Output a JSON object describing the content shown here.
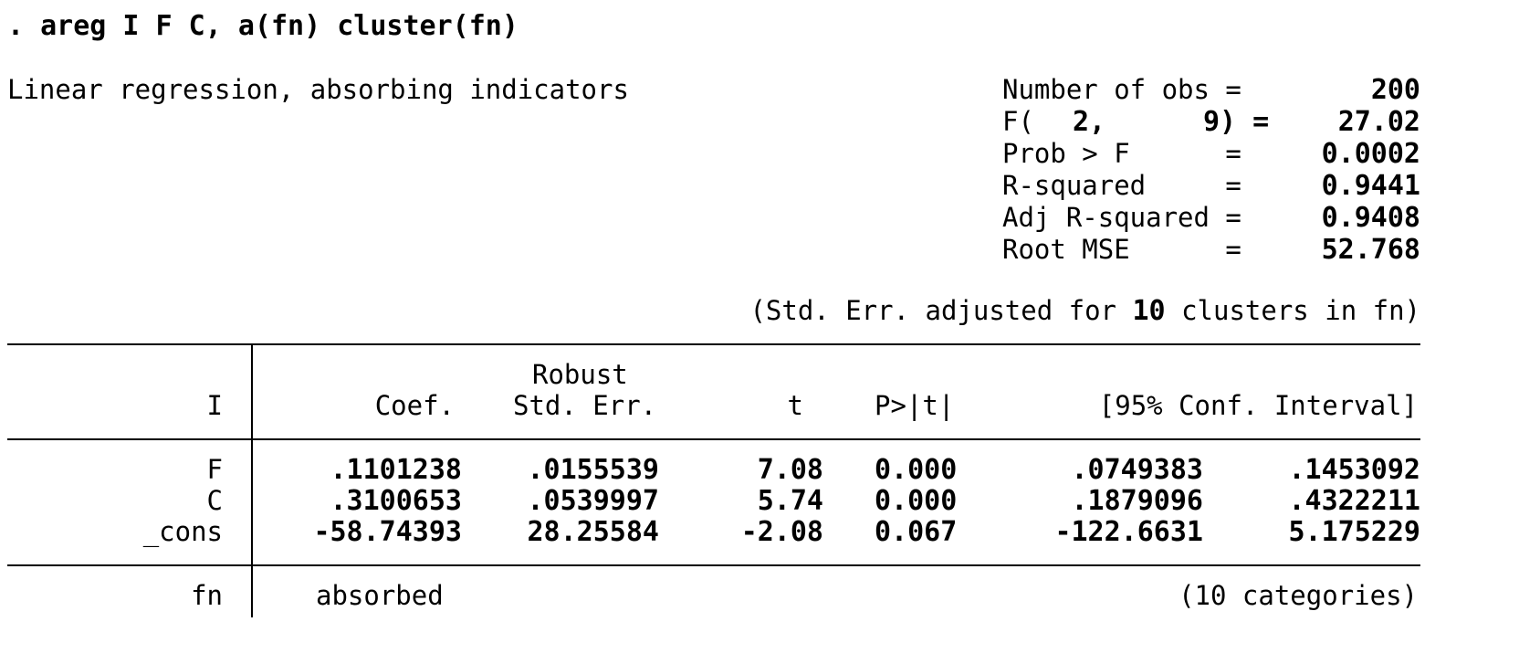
{
  "command": ". areg I F C, a(fn) cluster(fn)",
  "header": {
    "title": "Linear regression, absorbing indicators",
    "stats": [
      {
        "label": "Number of obs =",
        "value": "200"
      },
      {
        "label": "F(  2,      9) =",
        "label_parts": [
          "F(",
          "2,",
          "9) ="
        ],
        "value": "27.02"
      },
      {
        "label": "Prob > F      =",
        "value": "0.0002"
      },
      {
        "label": "R-squared     =",
        "value": "0.9441"
      },
      {
        "label": "Adj R-squared =",
        "value": "0.9408"
      },
      {
        "label": "Root MSE      =",
        "value": "52.768"
      }
    ]
  },
  "cluster_note": {
    "prefix": "(Std. Err. adjusted for",
    "count": "10",
    "suffix": "clusters in fn)"
  },
  "table": {
    "depvar": "I",
    "headers": {
      "coef": "Coef.",
      "robust": "Robust",
      "se": "Std. Err.",
      "t": "t",
      "p": "P>|t|",
      "ci": "[95% Conf. Interval]"
    },
    "rows": [
      {
        "name": "F",
        "coef": ".1101238",
        "se": ".0155539",
        "t": "7.08",
        "p": "0.000",
        "lo": ".0749383",
        "hi": ".1453092"
      },
      {
        "name": "C",
        "coef": ".3100653",
        "se": ".0539997",
        "t": "5.74",
        "p": "0.000",
        "lo": ".1879096",
        "hi": ".4322211"
      },
      {
        "name": "_cons",
        "coef": "-58.74393",
        "se": "28.25584",
        "t": "-2.08",
        "p": "0.067",
        "lo": "-122.6631",
        "hi": "5.175229"
      }
    ],
    "absorbed": {
      "name": "fn",
      "label": "absorbed",
      "categories": "(10 categories)"
    }
  }
}
